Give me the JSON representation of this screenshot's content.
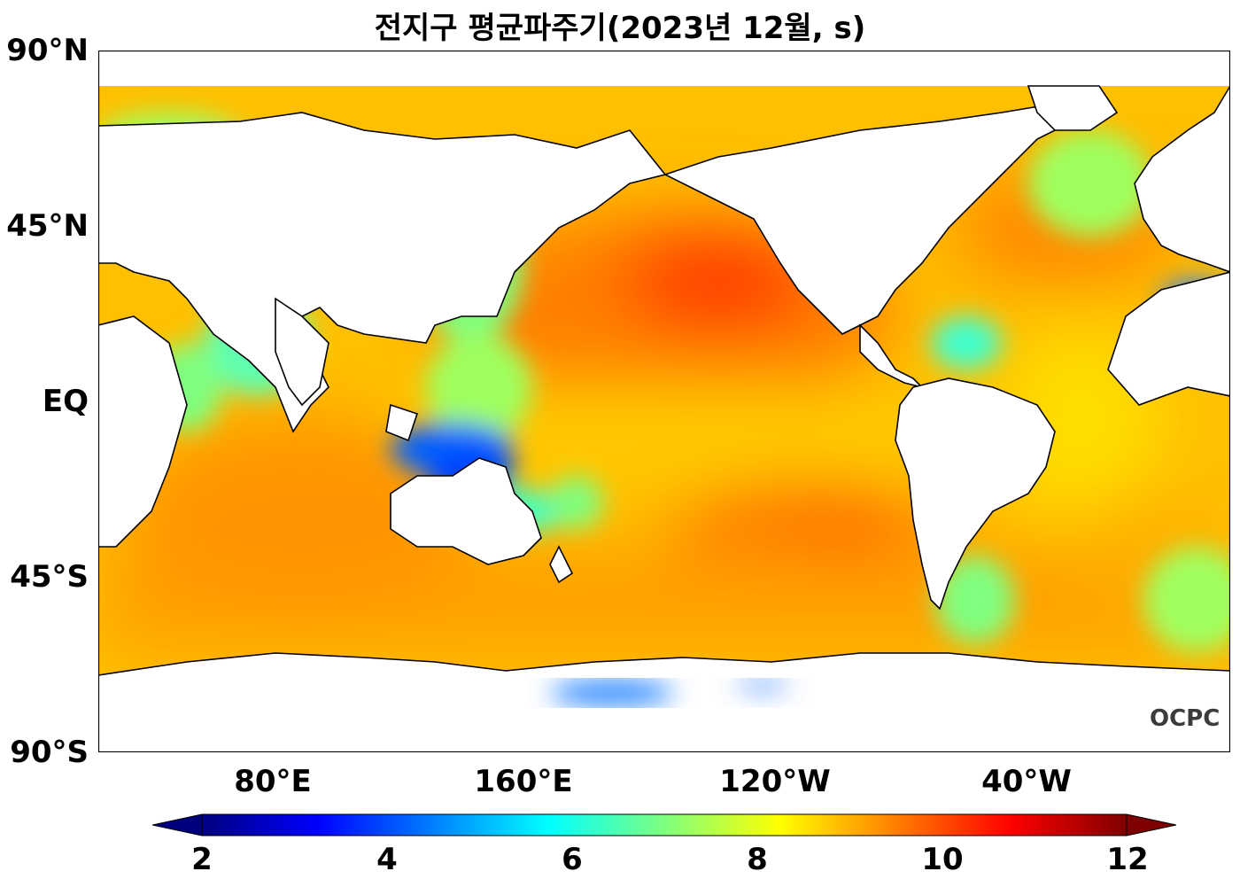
{
  "title": "전지구 평균파주기(2023년 12월, s)",
  "map": {
    "projection": "PlateCarree",
    "central_longitude": "180",
    "lat_ticks": [
      "90°N",
      "45°N",
      "EQ",
      "45°S",
      "90°S"
    ],
    "lon_ticks": [
      "80°E",
      "160°E",
      "120°W",
      "40°W"
    ],
    "variable": "mean wave period",
    "unit": "s",
    "land_color": "#ffffff",
    "coastline_color": "#000000"
  },
  "colorbar": {
    "colormap": "jet",
    "ticks": [
      "2",
      "4",
      "6",
      "8",
      "10",
      "12"
    ],
    "min": 2,
    "max": 12,
    "extend": "both",
    "colors": [
      "#00007f",
      "#0000ff",
      "#007fff",
      "#00ffff",
      "#7fff7f",
      "#ffff00",
      "#ff7f00",
      "#ff0000",
      "#7f0000"
    ]
  },
  "watermark": "OCPC"
}
